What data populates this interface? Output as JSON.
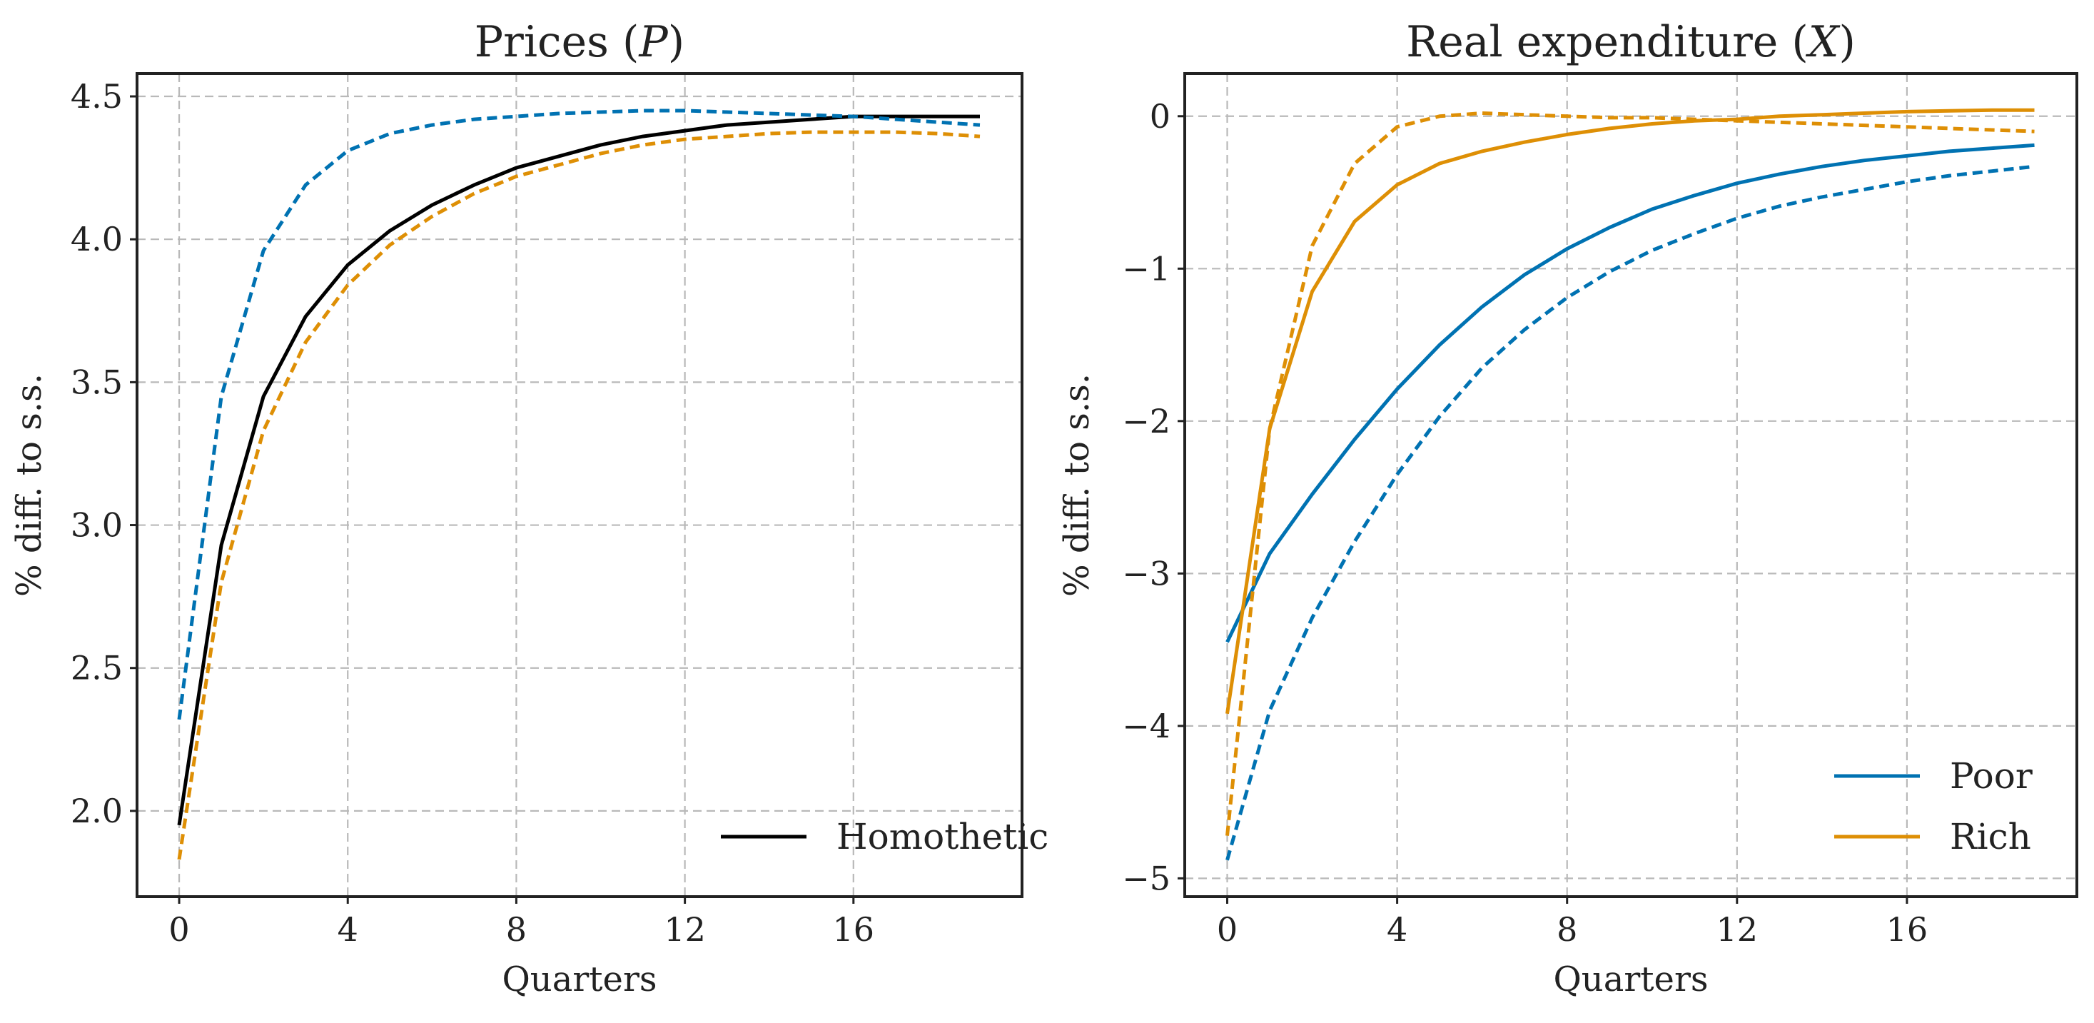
{
  "colors": {
    "homothetic": "#000000",
    "poor": "#0072b2",
    "rich": "#de8f05"
  },
  "chart_data": [
    {
      "type": "line",
      "title": "Prices (P)",
      "title_parts": [
        "Prices (",
        "P",
        ")"
      ],
      "xlabel": "Quarters",
      "ylabel": "% diff. to s.s.",
      "xlim": [
        -1,
        20
      ],
      "ylim": [
        1.7,
        4.58
      ],
      "xticks": [
        0,
        4,
        8,
        12,
        16
      ],
      "xtick_labels": [
        "0",
        "4",
        "8",
        "12",
        "16"
      ],
      "yticks": [
        2.0,
        2.5,
        3.0,
        3.5,
        4.0,
        4.5
      ],
      "ytick_labels": [
        "2.0",
        "2.5",
        "3.0",
        "3.5",
        "4.0",
        "4.5"
      ],
      "grid": true,
      "legend_position": "bottom-right",
      "x": [
        0,
        1,
        2,
        3,
        4,
        5,
        6,
        7,
        8,
        9,
        10,
        11,
        12,
        13,
        14,
        15,
        16,
        17,
        18,
        19
      ],
      "series": [
        {
          "name": "Homothetic",
          "color": "#000000",
          "style": "solid",
          "values": [
            1.95,
            2.93,
            3.45,
            3.73,
            3.91,
            4.03,
            4.12,
            4.19,
            4.25,
            4.29,
            4.33,
            4.36,
            4.38,
            4.4,
            4.41,
            4.42,
            4.43,
            4.43,
            4.43,
            4.43
          ]
        },
        {
          "color": "#0072b2",
          "style": "dashed",
          "values": [
            2.32,
            3.45,
            3.96,
            4.19,
            4.31,
            4.37,
            4.4,
            4.42,
            4.43,
            4.44,
            4.445,
            4.45,
            4.45,
            4.445,
            4.44,
            4.435,
            4.43,
            4.42,
            4.41,
            4.4
          ]
        },
        {
          "color": "#de8f05",
          "style": "dashed",
          "values": [
            1.83,
            2.8,
            3.33,
            3.64,
            3.84,
            3.98,
            4.08,
            4.16,
            4.22,
            4.26,
            4.3,
            4.33,
            4.35,
            4.36,
            4.37,
            4.375,
            4.375,
            4.375,
            4.37,
            4.36
          ]
        }
      ]
    },
    {
      "type": "line",
      "title": "Real expenditure (X)",
      "title_parts": [
        "Real expenditure (",
        "X",
        ")"
      ],
      "xlabel": "Quarters",
      "ylabel": "% diff. to s.s.",
      "xlim": [
        -1,
        20
      ],
      "ylim": [
        -5.12,
        0.28
      ],
      "xticks": [
        0,
        4,
        8,
        12,
        16
      ],
      "xtick_labels": [
        "0",
        "4",
        "8",
        "12",
        "16"
      ],
      "yticks": [
        0,
        -1,
        -2,
        -3,
        -4,
        -5
      ],
      "ytick_labels": [
        "0",
        "−1",
        "−2",
        "−3",
        "−4",
        "−5"
      ],
      "grid": true,
      "legend_position": "bottom-right",
      "x": [
        0,
        1,
        2,
        3,
        4,
        5,
        6,
        7,
        8,
        9,
        10,
        11,
        12,
        13,
        14,
        15,
        16,
        17,
        18,
        19
      ],
      "series": [
        {
          "name": "Poor",
          "color": "#0072b2",
          "style": "solid",
          "values": [
            -3.45,
            -2.87,
            -2.48,
            -2.12,
            -1.79,
            -1.5,
            -1.25,
            -1.04,
            -0.87,
            -0.73,
            -0.61,
            -0.52,
            -0.44,
            -0.38,
            -0.33,
            -0.29,
            -0.26,
            -0.23,
            -0.21,
            -0.19
          ]
        },
        {
          "color": "#0072b2",
          "style": "dashed",
          "values": [
            -4.88,
            -3.9,
            -3.29,
            -2.79,
            -2.35,
            -1.97,
            -1.65,
            -1.4,
            -1.19,
            -1.02,
            -0.88,
            -0.77,
            -0.67,
            -0.59,
            -0.53,
            -0.48,
            -0.43,
            -0.39,
            -0.36,
            -0.33
          ]
        },
        {
          "name": "Rich",
          "color": "#de8f05",
          "style": "solid",
          "values": [
            -3.92,
            -2.05,
            -1.15,
            -0.69,
            -0.45,
            -0.31,
            -0.23,
            -0.17,
            -0.12,
            -0.08,
            -0.05,
            -0.03,
            -0.02,
            0.0,
            0.01,
            0.02,
            0.03,
            0.035,
            0.04,
            0.04
          ]
        },
        {
          "color": "#de8f05",
          "style": "dashed",
          "values": [
            -4.72,
            -2.05,
            -0.85,
            -0.31,
            -0.07,
            0.0,
            0.02,
            0.01,
            0.0,
            -0.01,
            -0.01,
            -0.02,
            -0.03,
            -0.04,
            -0.05,
            -0.06,
            -0.07,
            -0.08,
            -0.09,
            -0.1
          ]
        }
      ]
    }
  ]
}
